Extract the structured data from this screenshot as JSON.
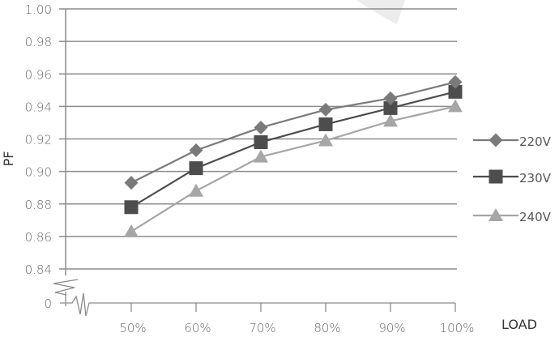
{
  "chart_data": {
    "type": "line",
    "title": "",
    "xlabel": "LOAD",
    "ylabel": "PF",
    "categories": [
      "50%",
      "60%",
      "70%",
      "80%",
      "90%",
      "100%"
    ],
    "y_ticks": [
      "1.00",
      "0.98",
      "0.96",
      "0.94",
      "0.92",
      "0.90",
      "0.88",
      "0.86",
      "0.84",
      "0"
    ],
    "ylim": [
      0.84,
      1.0
    ],
    "axis_break": true,
    "grid": true,
    "legend_position": "right",
    "series": [
      {
        "name": "220V",
        "marker": "diamond",
        "color": "#7a7a7a",
        "values": [
          0.893,
          0.913,
          0.927,
          0.938,
          0.945,
          0.955
        ]
      },
      {
        "name": "230V",
        "marker": "square",
        "color": "#4d4d4d",
        "values": [
          0.878,
          0.902,
          0.918,
          0.929,
          0.939,
          0.949
        ]
      },
      {
        "name": "240V",
        "marker": "triangle",
        "color": "#a6a6a6",
        "values": [
          0.863,
          0.888,
          0.909,
          0.919,
          0.931,
          0.94
        ]
      }
    ]
  }
}
